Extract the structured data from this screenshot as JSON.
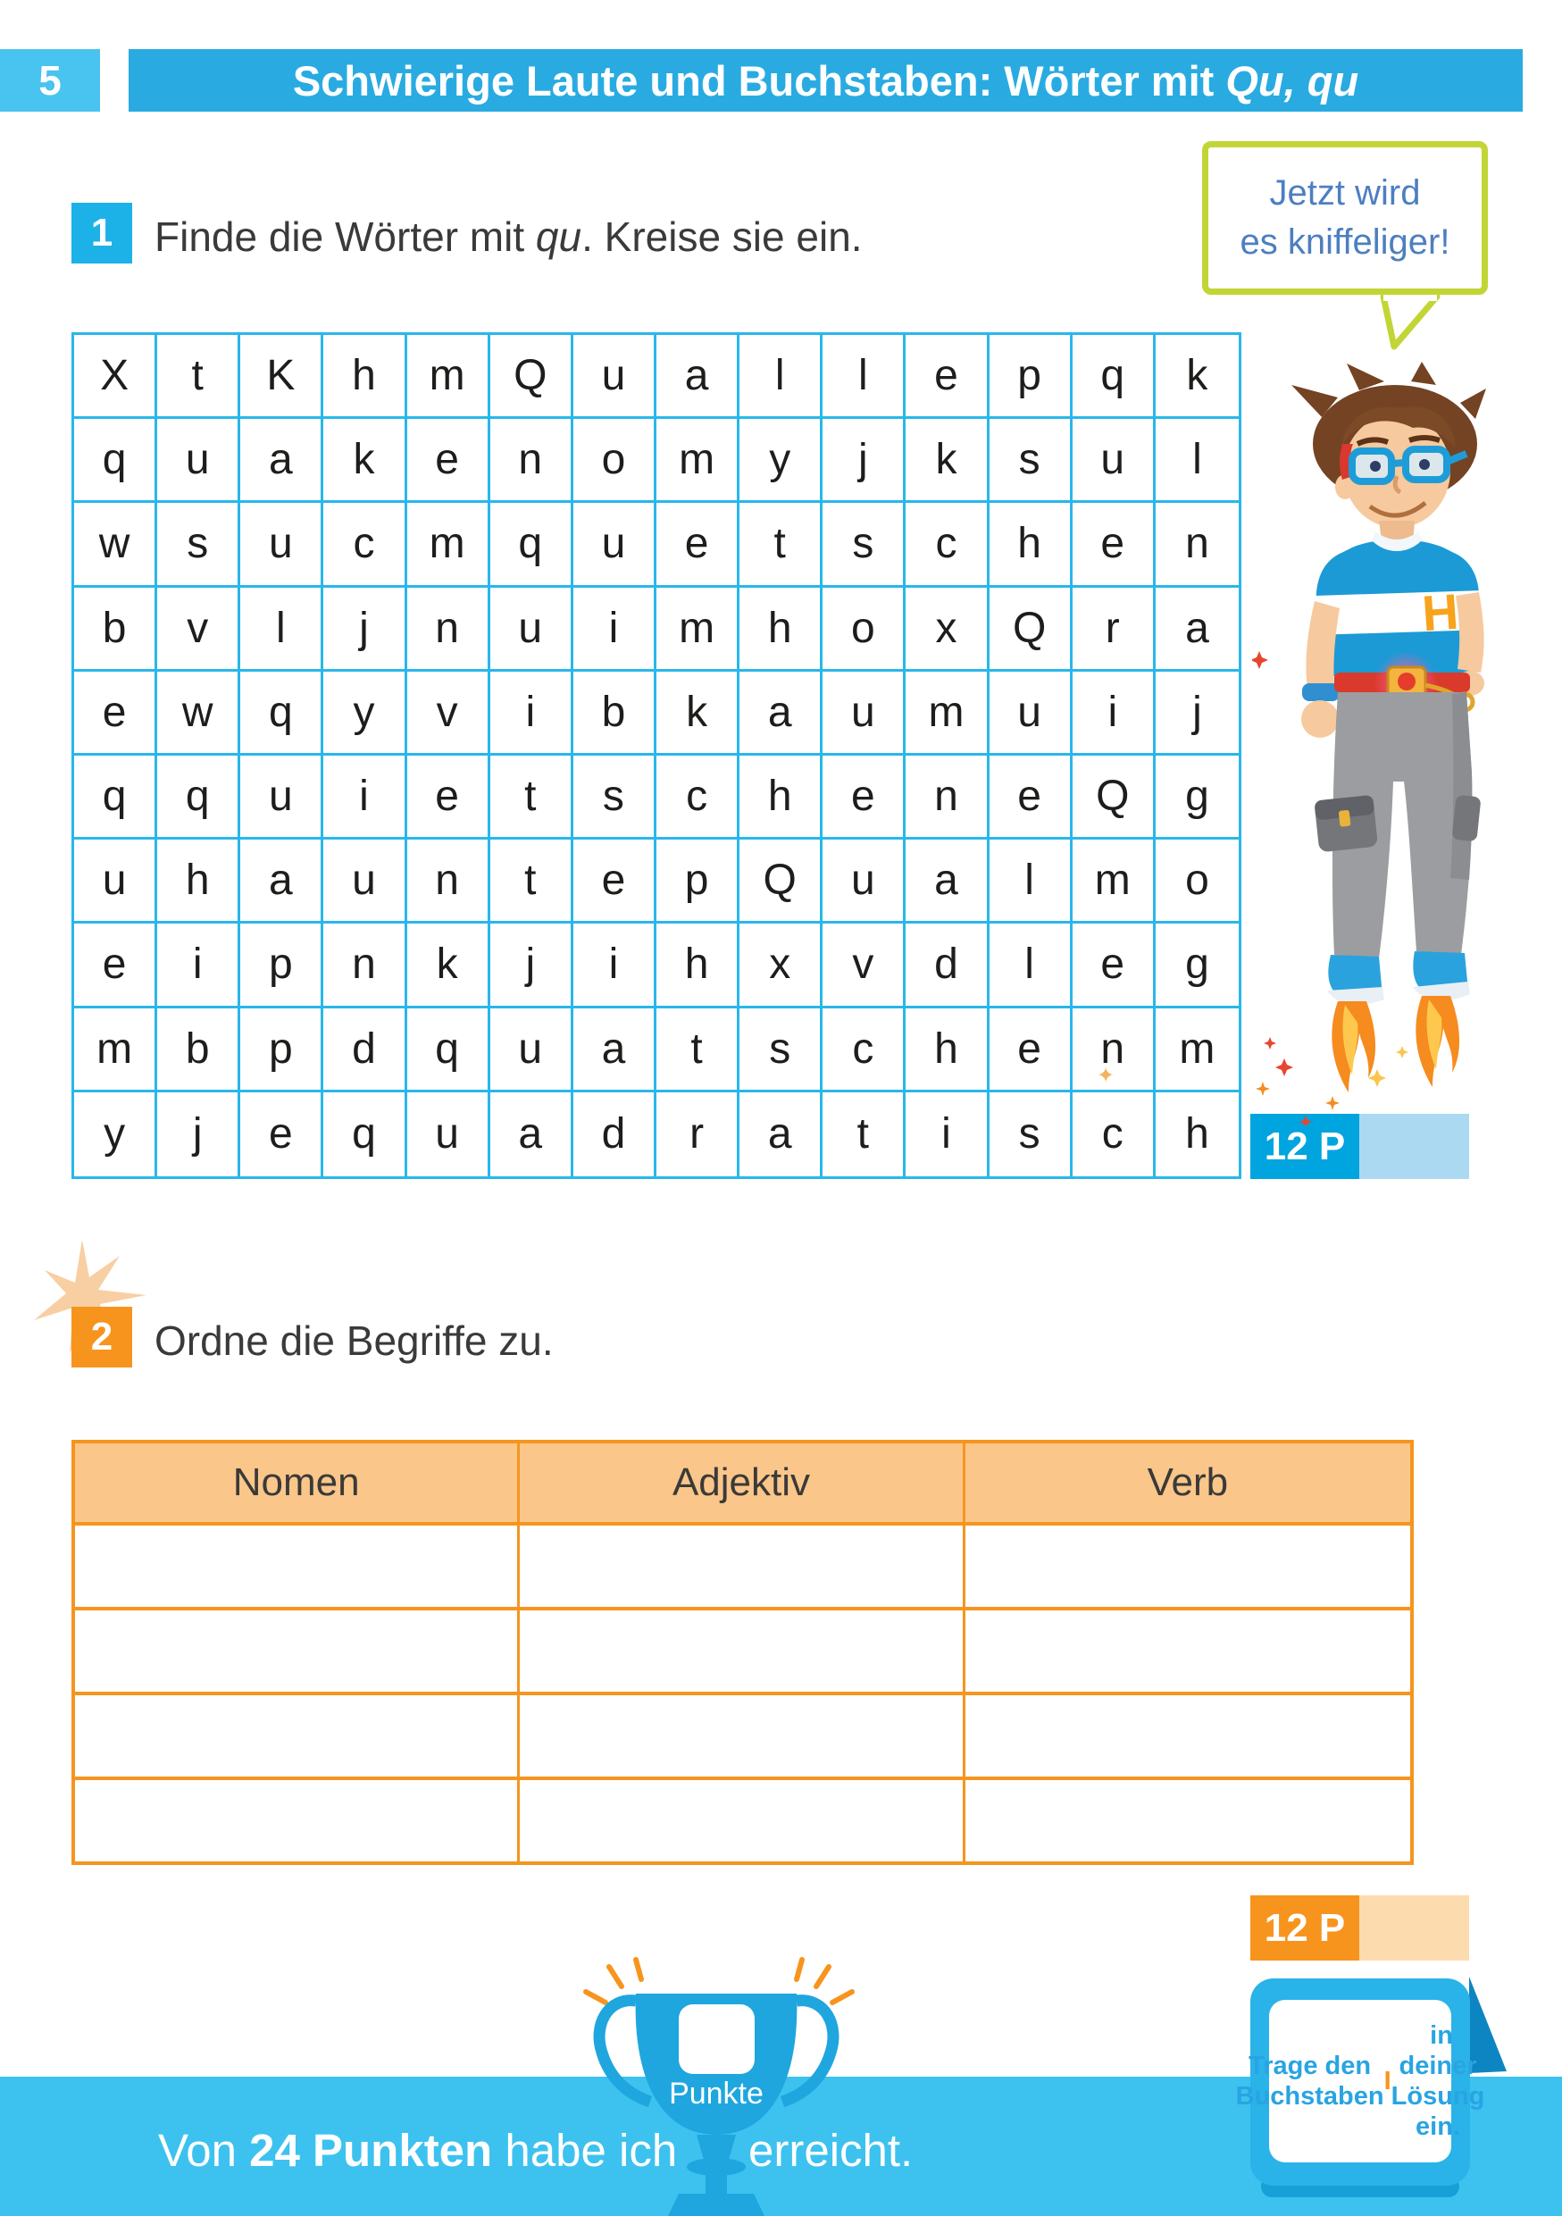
{
  "page": {
    "number": "5",
    "title": "Schwierige Laute und Buchstaben: Wörter mit ",
    "title_italic": "Qu, qu"
  },
  "bubble": {
    "line1": "Jetzt wird",
    "line2": "es kniffeliger!"
  },
  "task1": {
    "number": "1",
    "text_before": "Finde die Wörter mit ",
    "text_italic": "qu",
    "text_after": ". Kreise sie ein.",
    "points": "12 P"
  },
  "grid": {
    "rows": [
      [
        "X",
        "t",
        "K",
        "h",
        "m",
        "Q",
        "u",
        "a",
        "l",
        "l",
        "e",
        "p",
        "q",
        "k"
      ],
      [
        "q",
        "u",
        "a",
        "k",
        "e",
        "n",
        "o",
        "m",
        "y",
        "j",
        "k",
        "s",
        "u",
        "l"
      ],
      [
        "w",
        "s",
        "u",
        "c",
        "m",
        "q",
        "u",
        "e",
        "t",
        "s",
        "c",
        "h",
        "e",
        "n"
      ],
      [
        "b",
        "v",
        "l",
        "j",
        "n",
        "u",
        "i",
        "m",
        "h",
        "o",
        "x",
        "Q",
        "r",
        "a"
      ],
      [
        "e",
        "w",
        "q",
        "y",
        "v",
        "i",
        "b",
        "k",
        "a",
        "u",
        "m",
        "u",
        "i",
        "j"
      ],
      [
        "q",
        "q",
        "u",
        "i",
        "e",
        "t",
        "s",
        "c",
        "h",
        "e",
        "n",
        "e",
        "Q",
        "g"
      ],
      [
        "u",
        "h",
        "a",
        "u",
        "n",
        "t",
        "e",
        "p",
        "Q",
        "u",
        "a",
        "l",
        "m",
        "o"
      ],
      [
        "e",
        "i",
        "p",
        "n",
        "k",
        "j",
        "i",
        "h",
        "x",
        "v",
        "d",
        "l",
        "e",
        "g"
      ],
      [
        "m",
        "b",
        "p",
        "d",
        "q",
        "u",
        "a",
        "t",
        "s",
        "c",
        "h",
        "e",
        "n",
        "m"
      ],
      [
        "y",
        "j",
        "e",
        "q",
        "u",
        "a",
        "d",
        "r",
        "a",
        "t",
        "i",
        "s",
        "c",
        "h"
      ]
    ]
  },
  "task2": {
    "number": "2",
    "text": "Ordne die Begriffe zu.",
    "points": "12 P"
  },
  "table": {
    "headers": [
      "Nomen",
      "Adjektiv",
      "Verb"
    ],
    "empty_rows": 4
  },
  "note": {
    "text_before": "Trage den Buchstaben ",
    "letter": "I",
    "text_after": " in deiner Lösung ein."
  },
  "footer": {
    "text_start": "Von ",
    "points_total": "24 Punkten",
    "text_mid": " habe ich",
    "text_end": "erreicht.",
    "trophy_label": "Punkte"
  },
  "character": {
    "shirt_letter": "H"
  },
  "colors": {
    "header_blue": "#29abe2",
    "tab_blue": "#49c3f0",
    "grid_line_blue": "#29b7ea",
    "badge_blue": "#00a4df",
    "badge_blue_light": "#abd9f2",
    "orange": "#f7941e",
    "table_header_fill": "#fbc689",
    "badge_orange_light": "#fcdcae",
    "bubble_border_green": "#c2d535",
    "bubble_text_blue": "#4d7fc0",
    "footer_band_blue": "#3dc2f0",
    "trophy_blue": "#1fa6de",
    "note_blue": "#29b3e8",
    "text_dark": "#3a3a39",
    "star_peach": "#f8cfa3"
  }
}
